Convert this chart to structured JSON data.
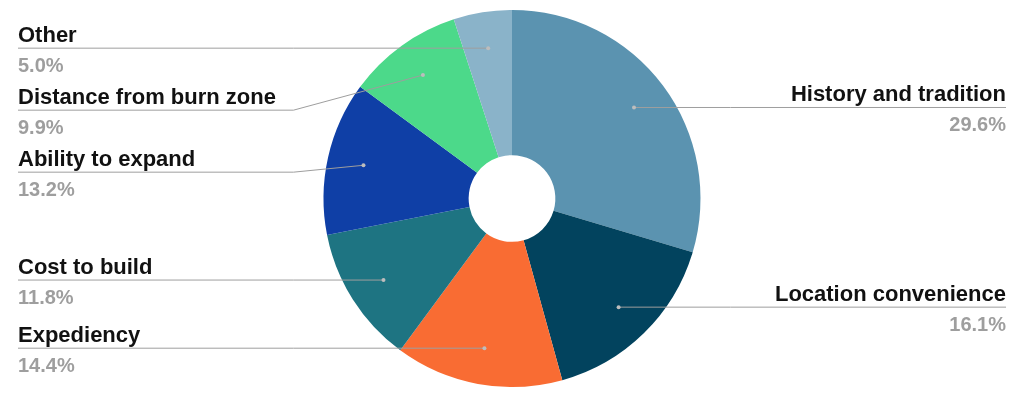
{
  "chart_data": {
    "type": "donut",
    "categories": [
      "History and tradition",
      "Location convenience",
      "Expediency",
      "Cost to build",
      "Ability to expand",
      "Distance from burn zone",
      "Other"
    ],
    "values": [
      29.6,
      16.1,
      14.4,
      11.8,
      13.2,
      9.9,
      5.0
    ],
    "value_labels": [
      "29.6%",
      "16.1%",
      "14.4%",
      "11.8%",
      "13.2%",
      "9.9%",
      "5.0%"
    ],
    "colors": [
      "#5b93b0",
      "#02435e",
      "#f96c33",
      "#1e7482",
      "#0f3fa6",
      "#4cd98a",
      "#8ab3c9"
    ],
    "legend": false
  }
}
